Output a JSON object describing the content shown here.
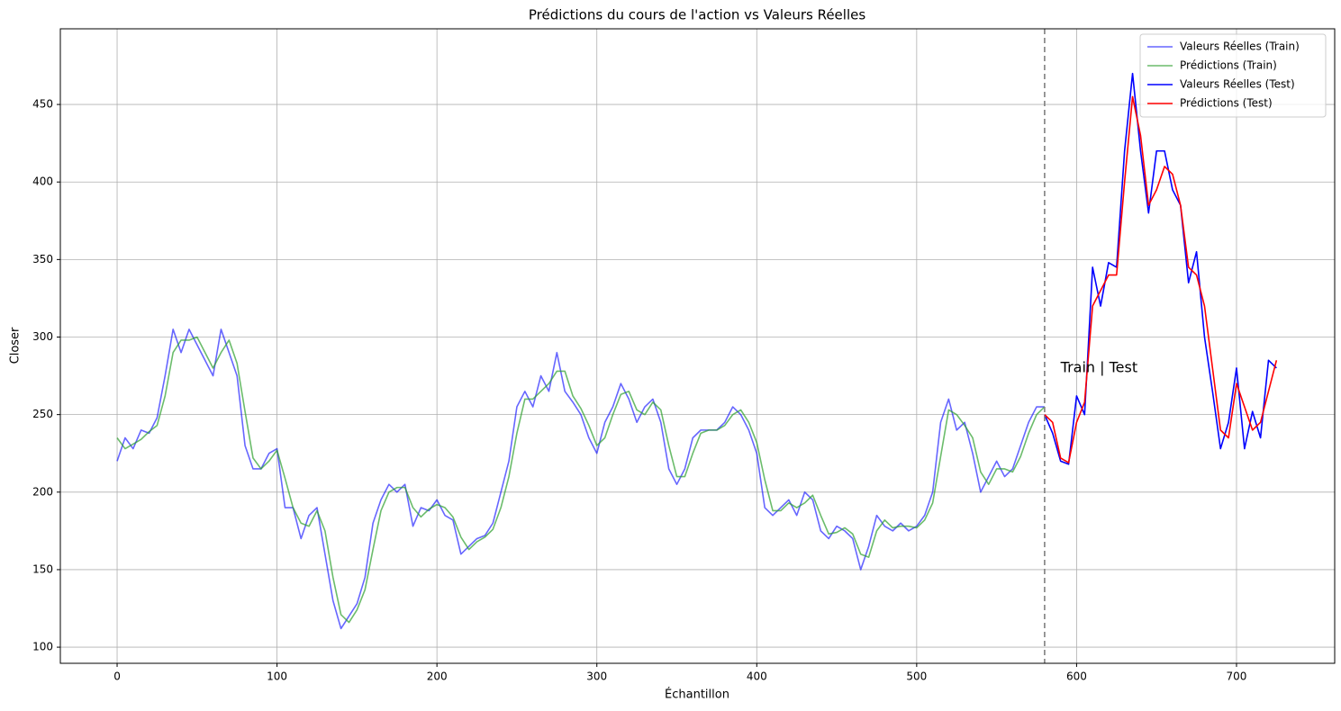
{
  "chart_data": {
    "type": "line",
    "title": "Prédictions du cours de l'action vs Valeurs Réelles",
    "x_label": "Échantillon",
    "y_label": "Closer",
    "xlim": [
      -35.5,
      761.4
    ],
    "ylim": [
      89.6,
      498.8
    ],
    "xticks": [
      0,
      100,
      200,
      300,
      400,
      500,
      600,
      700
    ],
    "yticks": [
      100,
      150,
      200,
      250,
      300,
      350,
      400,
      450
    ],
    "grid": true,
    "legend": "upper right",
    "vline": {
      "x": 580,
      "color": "#808080"
    },
    "annotation": {
      "text": "Train | Test",
      "x": 590,
      "y": 280
    },
    "series": [
      {
        "name": "Valeurs Réelles (Train)",
        "color": "#0000ff",
        "opacity": 0.6,
        "x": [
          0,
          5,
          10,
          15,
          20,
          25,
          30,
          35,
          40,
          45,
          50,
          55,
          60,
          65,
          70,
          75,
          80,
          85,
          90,
          95,
          100,
          105,
          110,
          115,
          120,
          125,
          130,
          135,
          140,
          145,
          150,
          155,
          160,
          165,
          170,
          175,
          180,
          185,
          190,
          195,
          200,
          205,
          210,
          215,
          220,
          225,
          230,
          235,
          240,
          245,
          250,
          255,
          260,
          265,
          270,
          275,
          280,
          285,
          290,
          295,
          300,
          305,
          310,
          315,
          320,
          325,
          330,
          335,
          340,
          345,
          350,
          355,
          360,
          365,
          370,
          375,
          380,
          385,
          390,
          395,
          400,
          405,
          410,
          415,
          420,
          425,
          430,
          435,
          440,
          445,
          450,
          455,
          460,
          465,
          470,
          475,
          480,
          485,
          490,
          495,
          500,
          505,
          510,
          515,
          520,
          525,
          530,
          535,
          540,
          545,
          550,
          555,
          560,
          565,
          570,
          575,
          580
        ],
        "values": [
          220,
          235,
          228,
          240,
          238,
          248,
          275,
          305,
          290,
          305,
          295,
          285,
          275,
          305,
          290,
          275,
          230,
          215,
          215,
          225,
          228,
          190,
          190,
          170,
          185,
          190,
          160,
          130,
          112,
          120,
          128,
          145,
          180,
          195,
          205,
          200,
          205,
          178,
          190,
          188,
          195,
          185,
          182,
          160,
          165,
          170,
          172,
          180,
          200,
          220,
          255,
          265,
          255,
          275,
          265,
          290,
          265,
          258,
          250,
          235,
          225,
          245,
          255,
          270,
          260,
          245,
          255,
          260,
          245,
          215,
          205,
          215,
          235,
          240,
          240,
          240,
          245,
          255,
          250,
          240,
          225,
          190,
          185,
          190,
          195,
          185,
          200,
          195,
          175,
          170,
          178,
          175,
          170,
          150,
          165,
          185,
          178,
          175,
          180,
          175,
          178,
          185,
          200,
          245,
          260,
          240,
          245,
          225,
          200,
          210,
          220,
          210,
          215,
          230,
          245,
          255,
          255
        ]
      },
      {
        "name": "Prédictions (Train)",
        "color": "#2ca02c",
        "opacity": 0.7,
        "x": [
          0,
          5,
          10,
          15,
          20,
          25,
          30,
          35,
          40,
          45,
          50,
          55,
          60,
          65,
          70,
          75,
          80,
          85,
          90,
          95,
          100,
          105,
          110,
          115,
          120,
          125,
          130,
          135,
          140,
          145,
          150,
          155,
          160,
          165,
          170,
          175,
          180,
          185,
          190,
          195,
          200,
          205,
          210,
          215,
          220,
          225,
          230,
          235,
          240,
          245,
          250,
          255,
          260,
          265,
          270,
          275,
          280,
          285,
          290,
          295,
          300,
          305,
          310,
          315,
          320,
          325,
          330,
          335,
          340,
          345,
          350,
          355,
          360,
          365,
          370,
          375,
          380,
          385,
          390,
          395,
          400,
          405,
          410,
          415,
          420,
          425,
          430,
          435,
          440,
          445,
          450,
          455,
          460,
          465,
          470,
          475,
          480,
          485,
          490,
          495,
          500,
          505,
          510,
          515,
          520,
          525,
          530,
          535,
          540,
          545,
          550,
          555,
          560,
          565,
          570,
          575,
          580
        ],
        "values": [
          235,
          228,
          231,
          234,
          239,
          243,
          262,
          290,
          298,
          298,
          300,
          290,
          280,
          290,
          298,
          283,
          252,
          222,
          215,
          220,
          227,
          209,
          190,
          180,
          178,
          188,
          175,
          145,
          121,
          116,
          124,
          137,
          163,
          188,
          200,
          203,
          203,
          190,
          184,
          189,
          192,
          190,
          184,
          171,
          163,
          168,
          171,
          176,
          190,
          210,
          238,
          260,
          260,
          265,
          270,
          278,
          278,
          262,
          254,
          243,
          230,
          235,
          250,
          263,
          265,
          253,
          250,
          258,
          253,
          230,
          210,
          210,
          225,
          238,
          240,
          240,
          243,
          250,
          253,
          245,
          232,
          208,
          188,
          188,
          193,
          190,
          193,
          198,
          185,
          173,
          174,
          177,
          173,
          160,
          158,
          175,
          182,
          177,
          178,
          178,
          177,
          182,
          193,
          223,
          253,
          250,
          243,
          235,
          213,
          205,
          215,
          215,
          213,
          223,
          238,
          250,
          255
        ]
      },
      {
        "name": "Valeurs Réelles (Test)",
        "color": "#0000ff",
        "opacity": 1,
        "x": [
          580,
          585,
          590,
          595,
          600,
          605,
          610,
          615,
          620,
          625,
          630,
          635,
          640,
          645,
          650,
          655,
          660,
          665,
          670,
          675,
          680,
          685,
          690,
          695,
          700,
          705,
          710,
          715,
          720,
          725
        ],
        "values": [
          250,
          238,
          220,
          218,
          262,
          250,
          345,
          320,
          348,
          345,
          420,
          470,
          420,
          380,
          420,
          420,
          395,
          385,
          335,
          355,
          300,
          265,
          228,
          245,
          280,
          228,
          252,
          235,
          285,
          280
        ]
      },
      {
        "name": "Prédictions (Test)",
        "color": "#ff0000",
        "opacity": 1,
        "x": [
          580,
          585,
          590,
          595,
          600,
          605,
          610,
          615,
          620,
          625,
          630,
          635,
          640,
          645,
          650,
          655,
          660,
          665,
          670,
          675,
          680,
          685,
          690,
          695,
          700,
          705,
          710,
          715,
          720,
          725
        ],
        "values": [
          250,
          245,
          222,
          219,
          245,
          258,
          320,
          330,
          340,
          340,
          400,
          455,
          430,
          385,
          395,
          410,
          405,
          385,
          345,
          340,
          320,
          280,
          240,
          235,
          270,
          255,
          240,
          245,
          265,
          285
        ]
      }
    ]
  }
}
